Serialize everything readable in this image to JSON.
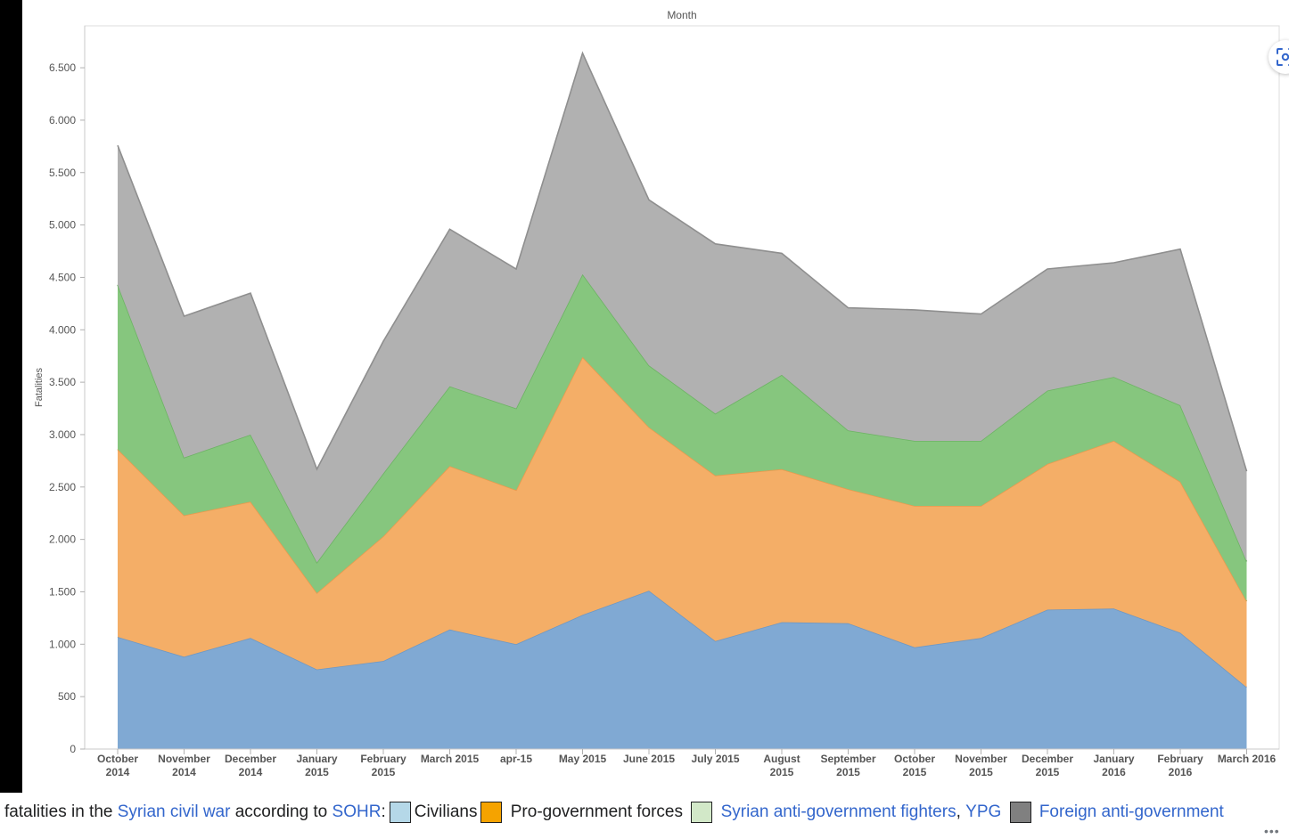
{
  "chart_data": {
    "type": "area",
    "stacked": true,
    "title": "Month",
    "xlabel": "",
    "ylabel": "Fatalities",
    "ylim": [
      0,
      6900
    ],
    "yticks": [
      0,
      500,
      1000,
      1500,
      2000,
      2500,
      3000,
      3500,
      4000,
      4500,
      5000,
      5500,
      6000,
      6500
    ],
    "ytick_labels": [
      "0",
      "500",
      "1.000",
      "1.500",
      "2.000",
      "2.500",
      "3.000",
      "3.500",
      "4.000",
      "4.500",
      "5.000",
      "5.500",
      "6.000",
      "6.500"
    ],
    "categories": [
      [
        "October",
        "2014"
      ],
      [
        "November",
        "2014"
      ],
      [
        "December",
        "2014"
      ],
      [
        "January",
        "2015"
      ],
      [
        "February",
        "2015"
      ],
      [
        "March 2015"
      ],
      [
        "apr-15"
      ],
      [
        "May 2015"
      ],
      [
        "June 2015"
      ],
      [
        "July 2015"
      ],
      [
        "August",
        "2015"
      ],
      [
        "September",
        "2015"
      ],
      [
        "October",
        "2015"
      ],
      [
        "November",
        "2015"
      ],
      [
        "December",
        "2015"
      ],
      [
        "January",
        "2016"
      ],
      [
        "February",
        "2016"
      ],
      [
        "March 2016"
      ]
    ],
    "series": [
      {
        "name": "Civilians",
        "color": "#80a9d3",
        "values": [
          1070,
          880,
          1060,
          760,
          840,
          1140,
          1000,
          1280,
          1510,
          1030,
          1210,
          1200,
          970,
          1060,
          1330,
          1340,
          1110,
          590
        ]
      },
      {
        "name": "Pro-government forces",
        "color": "#f4ae67",
        "values": [
          1790,
          1350,
          1300,
          730,
          1190,
          1560,
          1470,
          2460,
          1560,
          1580,
          1460,
          1280,
          1350,
          1260,
          1390,
          1600,
          1440,
          820
        ]
      },
      {
        "name": "Syrian anti-government fighters, YPG",
        "color": "#86c67e",
        "values": [
          1570,
          550,
          640,
          290,
          600,
          760,
          780,
          790,
          590,
          590,
          900,
          560,
          620,
          620,
          700,
          610,
          730,
          380
        ]
      },
      {
        "name": "Foreign anti-government",
        "color": "#b1b1b1",
        "values": [
          1330,
          1350,
          1350,
          890,
          1260,
          1500,
          1330,
          2110,
          1580,
          1620,
          1160,
          1170,
          1250,
          1210,
          1160,
          1090,
          1490,
          860
        ]
      }
    ]
  },
  "caption": {
    "prefix": "fatalities in the",
    "link_war": "Syrian civil war",
    "mid": "according to",
    "link_source": "SOHR",
    "colon": ":",
    "legend": [
      {
        "label": "Civilians",
        "swatch_color": "#b5d8e8",
        "is_link": false
      },
      {
        "label": "Pro-government forces",
        "swatch_color": "#f5a300",
        "is_link": false
      },
      {
        "label": "Syrian anti-government fighters",
        "swatch_color": "#d2e8c8",
        "is_link": true
      },
      {
        "label": "YPG",
        "is_link": true
      },
      {
        "label": "Foreign anti-government",
        "swatch_color": "#808080",
        "is_link": true
      }
    ],
    "separator": ","
  },
  "more_label": "•••",
  "icons": {
    "zoom": "zoom-focus-icon"
  }
}
